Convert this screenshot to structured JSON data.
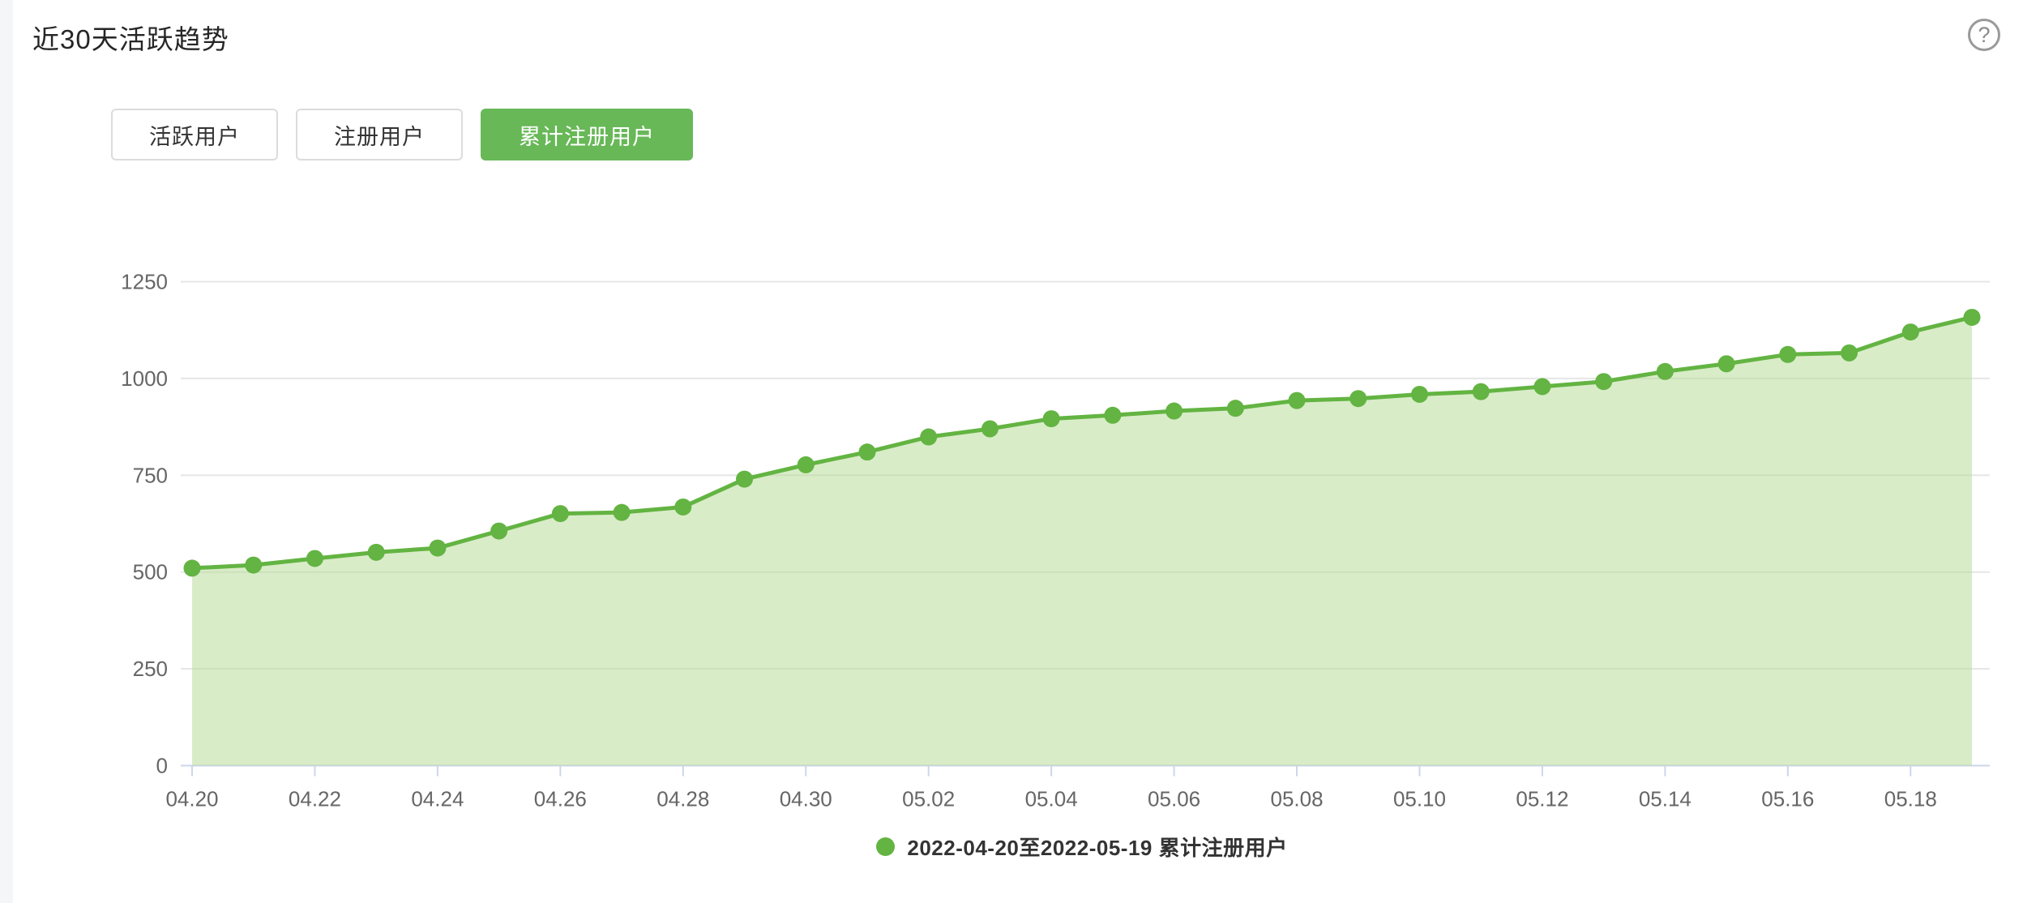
{
  "page": {
    "title": "近30天活跃趋势",
    "help_icon_glyph": "?"
  },
  "tabs": [
    {
      "label": "活跃用户",
      "active": false
    },
    {
      "label": "注册用户",
      "active": false
    },
    {
      "label": "累计注册用户",
      "active": true
    }
  ],
  "legend": {
    "label": "2022-04-20至2022-05-19 累计注册用户"
  },
  "colors": {
    "accent_green": "#63b442",
    "tab_active_bg": "#68b858",
    "area_fill_base": "#b4da92",
    "area_fill_opacity": 0.5,
    "gridline": "#e6e6e6",
    "axis_line": "#ccd6eb",
    "axis_label": "#666666",
    "legend_text": "#333333"
  },
  "chart_data": {
    "type": "area",
    "title": "近30天活跃趋势",
    "series": [
      {
        "name": "累计注册用户",
        "values": [
          510,
          518,
          535,
          551,
          562,
          606,
          651,
          654,
          668,
          740,
          777,
          810,
          849,
          870,
          896,
          905,
          916,
          923,
          943,
          948,
          959,
          966,
          979,
          992,
          1018,
          1038,
          1062,
          1066,
          1120,
          1158
        ]
      }
    ],
    "x": [
      "04.20",
      "04.21",
      "04.22",
      "04.23",
      "04.24",
      "04.25",
      "04.26",
      "04.27",
      "04.28",
      "04.29",
      "04.30",
      "05.01",
      "05.02",
      "05.03",
      "05.04",
      "05.05",
      "05.06",
      "05.07",
      "05.08",
      "05.09",
      "05.10",
      "05.11",
      "05.12",
      "05.13",
      "05.14",
      "05.15",
      "05.16",
      "05.17",
      "05.18",
      "05.19"
    ],
    "x_tick_labels": [
      "04.20",
      "04.22",
      "04.24",
      "04.26",
      "04.28",
      "04.30",
      "05.02",
      "05.04",
      "05.06",
      "05.08",
      "05.10",
      "05.12",
      "05.14",
      "05.16",
      "05.18"
    ],
    "x_tick_every": 2,
    "xlabel": "",
    "ylabel": "",
    "y_ticks": [
      0,
      250,
      500,
      750,
      1000,
      1250
    ],
    "ylim": [
      0,
      1250
    ],
    "grid": "horizontal",
    "legend_position": "bottom",
    "marker": "circle"
  }
}
